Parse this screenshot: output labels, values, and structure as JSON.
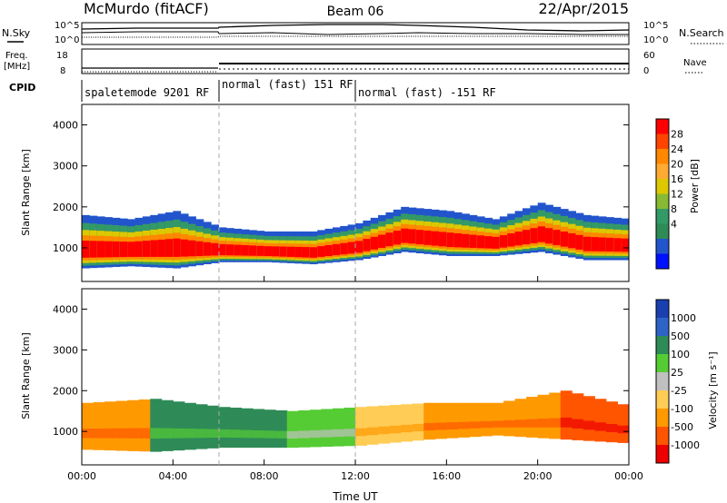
{
  "header": {
    "station": "McMurdo (fitACF)",
    "beam": "Beam 06",
    "date": "22/Apr/2015"
  },
  "top_panels": {
    "nsky_label": "N.Sky",
    "nsearch_label": "N.Search",
    "nsky_ticks": [
      "10^5",
      "10^0"
    ],
    "nsearch_ticks": [
      "10^5",
      "10^0"
    ],
    "freq_label": "Freq.",
    "freq_unit": "[MHz]",
    "freq_ticks": [
      "18",
      "8"
    ],
    "nave_label": "Nave",
    "nave_ticks": [
      "60",
      "0"
    ],
    "cpid_label": "CPID",
    "cpid_segments": [
      {
        "label": "spaletemode 9201 RF",
        "start_hour": 0
      },
      {
        "label": "normal (fast) 151 RF",
        "start_hour": 6
      },
      {
        "label": "normal (fast) -151 RF",
        "start_hour": 12
      }
    ]
  },
  "chart_data": [
    {
      "type": "heatmap",
      "name": "power",
      "ylabel": "Slant Range [km]",
      "xlabel": "Time UT",
      "x_ticks": [
        "00:00",
        "04:00",
        "08:00",
        "12:00",
        "16:00",
        "20:00",
        "00:00"
      ],
      "x_range_hours": [
        0,
        24
      ],
      "y_ticks": [
        1000,
        2000,
        3000,
        4000
      ],
      "y_range_km": [
        180,
        4500
      ],
      "colorbar_label": "Power [dB]",
      "colorbar_ticks": [
        "28",
        "24",
        "20",
        "16",
        "12",
        "8",
        "4"
      ],
      "colorbar_colors": [
        "#ff0000",
        "#ff4400",
        "#ff8800",
        "#ffaa33",
        "#ddc800",
        "#88bb33",
        "#339966",
        "#2e8b57",
        "#2255cc",
        "#0011ff"
      ],
      "echo_band": [
        {
          "hour": 0,
          "low_km": 500,
          "high_km": 1800
        },
        {
          "hour": 2,
          "low_km": 550,
          "high_km": 1700
        },
        {
          "hour": 4,
          "low_km": 500,
          "high_km": 1900
        },
        {
          "hour": 6,
          "low_km": 650,
          "high_km": 1500
        },
        {
          "hour": 8,
          "low_km": 650,
          "high_km": 1400
        },
        {
          "hour": 10,
          "low_km": 600,
          "high_km": 1400
        },
        {
          "hour": 12,
          "low_km": 700,
          "high_km": 1600
        },
        {
          "hour": 14,
          "low_km": 900,
          "high_km": 2000
        },
        {
          "hour": 16,
          "low_km": 800,
          "high_km": 1900
        },
        {
          "hour": 18,
          "low_km": 800,
          "high_km": 1700
        },
        {
          "hour": 20,
          "low_km": 900,
          "high_km": 2100
        },
        {
          "hour": 22,
          "low_km": 700,
          "high_km": 1800
        },
        {
          "hour": 24,
          "low_km": 700,
          "high_km": 1700
        }
      ]
    },
    {
      "type": "heatmap",
      "name": "velocity",
      "ylabel": "Slant Range [km]",
      "xlabel": "Time UT",
      "x_ticks": [
        "00:00",
        "04:00",
        "08:00",
        "12:00",
        "16:00",
        "20:00",
        "00:00"
      ],
      "x_range_hours": [
        0,
        24
      ],
      "y_ticks": [
        1000,
        2000,
        3000,
        4000
      ],
      "y_range_km": [
        180,
        4500
      ],
      "colorbar_label": "Velocity [m s⁻¹]",
      "colorbar_ticks": [
        "1000",
        "500",
        "100",
        "25",
        "-25",
        "-100",
        "-500",
        "-1000"
      ],
      "colorbar_colors": [
        "#1a3fb0",
        "#2d64c8",
        "#2e8b57",
        "#55cc33",
        "#c0c0c0",
        "#ffcc55",
        "#ff9900",
        "#ff5500",
        "#ee0000"
      ],
      "echo_band": [
        {
          "hour": 0,
          "low_km": 550,
          "high_km": 1700,
          "color_index": 6
        },
        {
          "hour": 3,
          "low_km": 500,
          "high_km": 1800,
          "color_index": 2
        },
        {
          "hour": 6,
          "low_km": 600,
          "high_km": 1600,
          "color_index": 2
        },
        {
          "hour": 9,
          "low_km": 600,
          "high_km": 1500,
          "color_index": 3
        },
        {
          "hour": 12,
          "low_km": 650,
          "high_km": 1600,
          "color_index": 5
        },
        {
          "hour": 15,
          "low_km": 800,
          "high_km": 1700,
          "color_index": 6
        },
        {
          "hour": 18,
          "low_km": 900,
          "high_km": 1700,
          "color_index": 6
        },
        {
          "hour": 21,
          "low_km": 800,
          "high_km": 2000,
          "color_index": 7
        },
        {
          "hour": 24,
          "low_km": 700,
          "high_km": 1600,
          "color_index": 7
        }
      ]
    }
  ]
}
